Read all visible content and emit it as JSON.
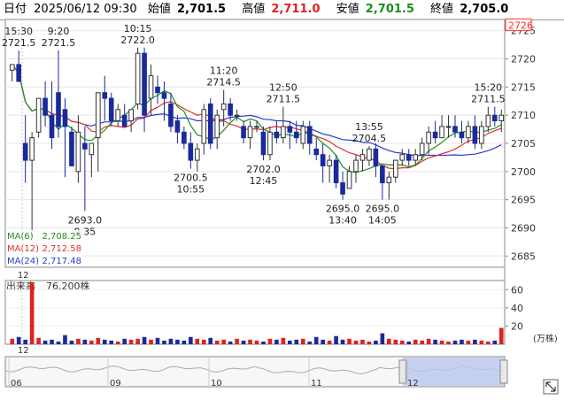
{
  "header": {
    "date_label": "日付",
    "date_value": "2025/06/12 09:30",
    "open_label": "始値",
    "open_value": "2,701.5",
    "high_label": "高値",
    "high_value": "2,711.0",
    "low_label": "安値",
    "low_value": "2,701.5",
    "close_label": "終値",
    "close_value": "2,705.0"
  },
  "colors": {
    "up": "#dd2222",
    "down": "#1a2a9a",
    "ma6": "#1f8f1f",
    "ma12": "#e03030",
    "ma24": "#2a3acc",
    "price_box": "#ff3030",
    "low_text": "#1c8c1c",
    "high_text": "#e02020",
    "nav_fill": "#b9c7f0"
  },
  "chart_data": {
    "type": "candlestick",
    "y_ticks": [
      2685,
      2690,
      2695,
      2700,
      2705,
      2710,
      2715,
      2720,
      2725
    ],
    "ylim": [
      2683,
      2727
    ],
    "current_price_label": "2726",
    "candles": [
      {
        "o": 2718,
        "h": 2719,
        "l": 2716,
        "c": 2719
      },
      {
        "o": 2719,
        "h": 2721.5,
        "l": 2716,
        "c": 2716
      },
      {
        "o": 2705,
        "h": 2710,
        "l": 2698,
        "c": 2702
      },
      {
        "o": 2702,
        "h": 2707,
        "l": 2688,
        "c": 2706
      },
      {
        "o": 2707,
        "h": 2713,
        "l": 2706,
        "c": 2713
      },
      {
        "o": 2713,
        "h": 2716,
        "l": 2708,
        "c": 2710
      },
      {
        "o": 2710,
        "h": 2716,
        "l": 2704,
        "c": 2706
      },
      {
        "o": 2714,
        "h": 2721.5,
        "l": 2706,
        "c": 2708
      },
      {
        "o": 2711,
        "h": 2713,
        "l": 2699,
        "c": 2708
      },
      {
        "o": 2707,
        "h": 2708,
        "l": 2701,
        "c": 2701
      },
      {
        "o": 2700,
        "h": 2710,
        "l": 2698,
        "c": 2707
      },
      {
        "o": 2705,
        "h": 2708,
        "l": 2693,
        "c": 2704
      },
      {
        "o": 2703,
        "h": 2705,
        "l": 2699,
        "c": 2705
      },
      {
        "o": 2706,
        "h": 2714,
        "l": 2700,
        "c": 2714
      },
      {
        "o": 2714,
        "h": 2717,
        "l": 2709,
        "c": 2713
      },
      {
        "o": 2713,
        "h": 2714,
        "l": 2708,
        "c": 2709
      },
      {
        "o": 2709,
        "h": 2712,
        "l": 2708,
        "c": 2711
      },
      {
        "o": 2710,
        "h": 2712,
        "l": 2708,
        "c": 2708
      },
      {
        "o": 2709,
        "h": 2711,
        "l": 2707,
        "c": 2711
      },
      {
        "o": 2712,
        "h": 2722,
        "l": 2711,
        "c": 2721
      },
      {
        "o": 2721,
        "h": 2722,
        "l": 2707,
        "c": 2710
      },
      {
        "o": 2713,
        "h": 2719,
        "l": 2710,
        "c": 2717
      },
      {
        "o": 2715,
        "h": 2717,
        "l": 2712,
        "c": 2714
      },
      {
        "o": 2714,
        "h": 2716,
        "l": 2709,
        "c": 2713
      },
      {
        "o": 2712,
        "h": 2714,
        "l": 2707,
        "c": 2708
      },
      {
        "o": 2709,
        "h": 2710,
        "l": 2705,
        "c": 2707
      },
      {
        "o": 2707,
        "h": 2708,
        "l": 2704,
        "c": 2705
      },
      {
        "o": 2705,
        "h": 2707,
        "l": 2700.5,
        "c": 2702
      },
      {
        "o": 2702,
        "h": 2705,
        "l": 2700,
        "c": 2704
      },
      {
        "o": 2705,
        "h": 2712,
        "l": 2703,
        "c": 2711
      },
      {
        "o": 2712,
        "h": 2713,
        "l": 2704,
        "c": 2705
      },
      {
        "o": 2706,
        "h": 2711,
        "l": 2704,
        "c": 2710
      },
      {
        "o": 2711,
        "h": 2714.5,
        "l": 2708,
        "c": 2712
      },
      {
        "o": 2712,
        "h": 2713,
        "l": 2709,
        "c": 2710
      },
      {
        "o": 2710,
        "h": 2711,
        "l": 2709,
        "c": 2710
      },
      {
        "o": 2708,
        "h": 2709,
        "l": 2705,
        "c": 2706
      },
      {
        "o": 2706,
        "h": 2709,
        "l": 2704,
        "c": 2708
      },
      {
        "o": 2708,
        "h": 2709,
        "l": 2707,
        "c": 2708
      },
      {
        "o": 2707,
        "h": 2708,
        "l": 2702,
        "c": 2703
      },
      {
        "o": 2703,
        "h": 2708,
        "l": 2702,
        "c": 2707
      },
      {
        "o": 2707,
        "h": 2709,
        "l": 2705,
        "c": 2706
      },
      {
        "o": 2706,
        "h": 2711.5,
        "l": 2705,
        "c": 2708
      },
      {
        "o": 2708,
        "h": 2709,
        "l": 2704,
        "c": 2707
      },
      {
        "o": 2707,
        "h": 2709,
        "l": 2705,
        "c": 2706
      },
      {
        "o": 2705,
        "h": 2709,
        "l": 2704,
        "c": 2708
      },
      {
        "o": 2708,
        "h": 2709,
        "l": 2703,
        "c": 2705
      },
      {
        "o": 2704,
        "h": 2706,
        "l": 2702,
        "c": 2703
      },
      {
        "o": 2703,
        "h": 2705,
        "l": 2698,
        "c": 2701
      },
      {
        "o": 2701,
        "h": 2703,
        "l": 2698,
        "c": 2702
      },
      {
        "o": 2702,
        "h": 2703,
        "l": 2697,
        "c": 2698
      },
      {
        "o": 2698,
        "h": 2700,
        "l": 2695,
        "c": 2696
      },
      {
        "o": 2697,
        "h": 2701,
        "l": 2697,
        "c": 2700
      },
      {
        "o": 2700,
        "h": 2703,
        "l": 2698,
        "c": 2702
      },
      {
        "o": 2702,
        "h": 2704,
        "l": 2700,
        "c": 2703
      },
      {
        "o": 2702,
        "h": 2704.5,
        "l": 2701,
        "c": 2704
      },
      {
        "o": 2704,
        "h": 2705,
        "l": 2699,
        "c": 2701
      },
      {
        "o": 2701,
        "h": 2701,
        "l": 2695,
        "c": 2698
      },
      {
        "o": 2698,
        "h": 2700,
        "l": 2695,
        "c": 2699
      },
      {
        "o": 2699,
        "h": 2702,
        "l": 2698,
        "c": 2702
      },
      {
        "o": 2702,
        "h": 2704,
        "l": 2701,
        "c": 2703
      },
      {
        "o": 2703,
        "h": 2704,
        "l": 2701,
        "c": 2702
      },
      {
        "o": 2702,
        "h": 2704,
        "l": 2701,
        "c": 2703
      },
      {
        "o": 2703,
        "h": 2706,
        "l": 2702,
        "c": 2705
      },
      {
        "o": 2705,
        "h": 2708,
        "l": 2703,
        "c": 2707
      },
      {
        "o": 2707,
        "h": 2709,
        "l": 2705,
        "c": 2706
      },
      {
        "o": 2706,
        "h": 2710,
        "l": 2706,
        "c": 2708
      },
      {
        "o": 2708,
        "h": 2710,
        "l": 2706,
        "c": 2708
      },
      {
        "o": 2708,
        "h": 2710,
        "l": 2706,
        "c": 2707
      },
      {
        "o": 2707,
        "h": 2709,
        "l": 2705,
        "c": 2706
      },
      {
        "o": 2706,
        "h": 2709,
        "l": 2705,
        "c": 2708
      },
      {
        "o": 2708,
        "h": 2710,
        "l": 2704,
        "c": 2705
      },
      {
        "o": 2705,
        "h": 2709,
        "l": 2704,
        "c": 2708
      },
      {
        "o": 2708,
        "h": 2711.5,
        "l": 2707,
        "c": 2710
      },
      {
        "o": 2710,
        "h": 2711.5,
        "l": 2708,
        "c": 2709
      },
      {
        "o": 2709,
        "h": 2711,
        "l": 2707,
        "c": 2710
      }
    ],
    "annotations": [
      {
        "time": "15:30",
        "price": "2721.5",
        "index": 1,
        "kind": "high"
      },
      {
        "time": "9:20",
        "price": "2721.5",
        "index": 7,
        "kind": "high"
      },
      {
        "time": "10:15",
        "price": "2722.0",
        "index": 19,
        "kind": "high"
      },
      {
        "time": "11:20",
        "price": "2714.5",
        "index": 32,
        "kind": "high"
      },
      {
        "time": "12:50",
        "price": "2711.5",
        "index": 41,
        "kind": "high"
      },
      {
        "time": "13:55",
        "price": "2704.5",
        "index": 54,
        "kind": "high"
      },
      {
        "time": "15:20",
        "price": "2711.5",
        "index": 72,
        "kind": "high"
      },
      {
        "time": "9:35",
        "price": "2693.0",
        "index": 11,
        "kind": "low"
      },
      {
        "time": "10:55",
        "price": "2700.5",
        "index": 27,
        "kind": "low"
      },
      {
        "time": "12:45",
        "price": "2702.0",
        "index": 38,
        "kind": "low"
      },
      {
        "time": "13:40",
        "price": "2695.0",
        "index": 50,
        "kind": "low"
      },
      {
        "time": "14:05",
        "price": "2695.0",
        "index": 56,
        "kind": "low"
      }
    ],
    "ma_legend": [
      {
        "name": "MA(6)",
        "value": "2,708.25"
      },
      {
        "name": "MA(12)",
        "value": "2,712.58"
      },
      {
        "name": "MA(24)",
        "value": "2,717.48"
      }
    ],
    "x_label_main": "12",
    "volume": {
      "label": "出来高",
      "value": "76,200株",
      "unit": "(万株)",
      "y_ticks": [
        20,
        40,
        60
      ],
      "bars": [
        6,
        8,
        5,
        68,
        7,
        4,
        5,
        3,
        10,
        4,
        6,
        5,
        4,
        7,
        5,
        4,
        3,
        6,
        5,
        6,
        8,
        5,
        7,
        4,
        6,
        5,
        4,
        8,
        6,
        5,
        7,
        4,
        5,
        3,
        6,
        4,
        5,
        4,
        3,
        6,
        5,
        7,
        4,
        5,
        6,
        3,
        8,
        5,
        4,
        9,
        5,
        6,
        4,
        5,
        3,
        4,
        12,
        6,
        5,
        4,
        3,
        5,
        4,
        6,
        5,
        4,
        3,
        4,
        5,
        4,
        5,
        4,
        3,
        4,
        18
      ]
    },
    "navigator": {
      "labels": [
        "06",
        "09",
        "10",
        "11",
        "12"
      ],
      "x_label": "12"
    }
  }
}
